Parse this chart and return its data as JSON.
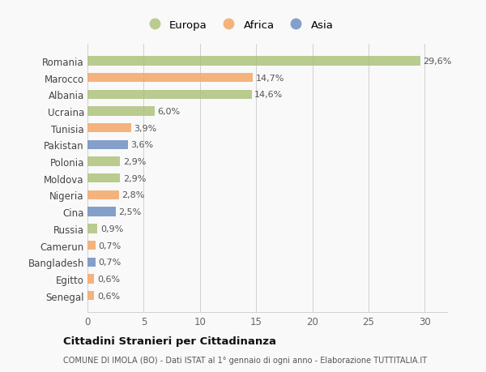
{
  "countries": [
    "Romania",
    "Marocco",
    "Albania",
    "Ucraina",
    "Tunisia",
    "Pakistan",
    "Polonia",
    "Moldova",
    "Nigeria",
    "Cina",
    "Russia",
    "Camerun",
    "Bangladesh",
    "Egitto",
    "Senegal"
  ],
  "values": [
    29.6,
    14.7,
    14.6,
    6.0,
    3.9,
    3.6,
    2.9,
    2.9,
    2.8,
    2.5,
    0.9,
    0.7,
    0.7,
    0.6,
    0.6
  ],
  "labels": [
    "29,6%",
    "14,7%",
    "14,6%",
    "6,0%",
    "3,9%",
    "3,6%",
    "2,9%",
    "2,9%",
    "2,8%",
    "2,5%",
    "0,9%",
    "0,7%",
    "0,7%",
    "0,6%",
    "0,6%"
  ],
  "colors": [
    "#adc178",
    "#f4a460",
    "#adc178",
    "#adc178",
    "#f4a460",
    "#6b8cbf",
    "#adc178",
    "#adc178",
    "#f4a460",
    "#6b8cbf",
    "#adc178",
    "#f4a460",
    "#6b8cbf",
    "#f4a460",
    "#f4a460"
  ],
  "legend": [
    {
      "label": "Europa",
      "color": "#adc178"
    },
    {
      "label": "Africa",
      "color": "#f4a460"
    },
    {
      "label": "Asia",
      "color": "#6b8cbf"
    }
  ],
  "xlim": [
    0,
    32
  ],
  "xticks": [
    0,
    5,
    10,
    15,
    20,
    25,
    30
  ],
  "title": "Cittadini Stranieri per Cittadinanza",
  "subtitle": "COMUNE DI IMOLA (BO) - Dati ISTAT al 1° gennaio di ogni anno - Elaborazione TUTTITALIA.IT",
  "background_color": "#f9f9f9",
  "bar_alpha": 0.82,
  "bar_height": 0.55
}
